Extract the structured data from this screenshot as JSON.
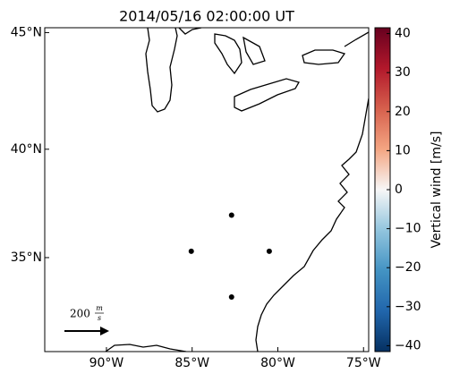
{
  "chart_data": {
    "type": "scatter",
    "title": "2014/05/16 02:00:00 UT",
    "projection": "mercator",
    "x": [
      -82.7,
      -85.05,
      -80.5,
      -82.7
    ],
    "y": [
      37.0,
      35.3,
      35.3,
      33.1
    ],
    "color": "#000000",
    "xlim": [
      -93.6,
      -74.7
    ],
    "ylim": [
      30.4,
      45.2
    ],
    "xticks": [
      {
        "value": -90,
        "label": "90°W"
      },
      {
        "value": -85,
        "label": "85°W"
      },
      {
        "value": -80,
        "label": "80°W"
      },
      {
        "value": -75,
        "label": "75°W"
      }
    ],
    "yticks": [
      {
        "value": 35,
        "label": "35°N"
      },
      {
        "value": 40,
        "label": "40°N"
      },
      {
        "value": 45,
        "label": "45°N"
      }
    ],
    "colorbar": {
      "label": "Vertical wind [m/s]",
      "lim": [
        -41.5,
        41.5
      ],
      "ticks": [
        {
          "value": -40,
          "label": "−40"
        },
        {
          "value": -30,
          "label": "−30"
        },
        {
          "value": -20,
          "label": "−20"
        },
        {
          "value": -10,
          "label": "−10"
        },
        0,
        10,
        20,
        30,
        40
      ]
    },
    "quiver_key": {
      "value": 200,
      "unit_numerator": "m",
      "unit_denominator": "s"
    }
  }
}
